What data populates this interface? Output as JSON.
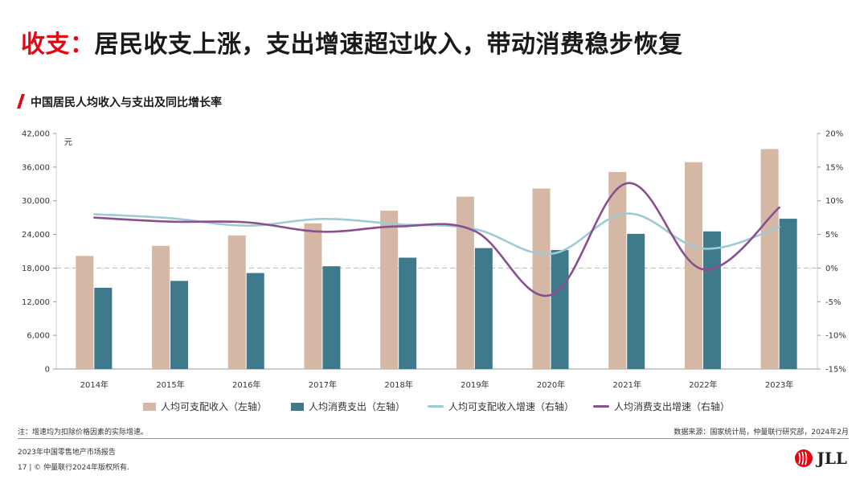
{
  "page": {
    "title_accent": "收支：",
    "title_main": "居民收支上涨，支出增速超过收入，带动消费稳步恢复",
    "subtitle": "中国居民人均收入与支出及同比增长率",
    "footnote_left": "注：增速均为扣除价格因素的实际增速。",
    "footnote_right": "数据来源：国家统计局，仲量联行研究部，2024年2月",
    "report": "2023年中国零售地产市场报告",
    "copyright": "17 | © 仲量联行2024年版权所有.",
    "logo_text": "JLL"
  },
  "colors": {
    "accent": "#e30613",
    "income_bar": "#d4b8a5",
    "expense_bar": "#3f7a8c",
    "income_growth_line": "#9ecad6",
    "expense_growth_line": "#8a4f8e",
    "zero_line": "#bfbfbf"
  },
  "chart_data": {
    "type": "bar",
    "categories": [
      "2014年",
      "2015年",
      "2016年",
      "2017年",
      "2018年",
      "2019年",
      "2020年",
      "2021年",
      "2022年",
      "2023年"
    ],
    "unit_left": "元",
    "ylim_left": [
      0,
      42000
    ],
    "yticks_left": [
      "0",
      "6,000",
      "12,000",
      "18,000",
      "24,000",
      "30,000",
      "36,000",
      "42,000"
    ],
    "ylim_right": [
      -15,
      20
    ],
    "yticks_right": [
      "-15%",
      "-10%",
      "-5%",
      "0%",
      "5%",
      "10%",
      "15%",
      "20%"
    ],
    "grid": false,
    "legend_position": "bottom",
    "series": [
      {
        "name": "人均可支配收入（左轴）",
        "type": "bar",
        "axis": "left",
        "values": [
          20167,
          21966,
          23821,
          25974,
          28228,
          30733,
          32189,
          35128,
          36883,
          39218
        ]
      },
      {
        "name": "人均消费支出（左轴）",
        "type": "bar",
        "axis": "left",
        "values": [
          14491,
          15712,
          17111,
          18322,
          19853,
          21559,
          21210,
          24100,
          24538,
          26796
        ]
      },
      {
        "name": "人均可支配收入增速（右轴）",
        "type": "line",
        "axis": "right",
        "values": [
          8.0,
          7.4,
          6.3,
          7.3,
          6.5,
          5.8,
          2.1,
          8.1,
          2.9,
          6.1
        ]
      },
      {
        "name": "人均消费支出增速（右轴）",
        "type": "line",
        "axis": "right",
        "values": [
          7.5,
          6.9,
          6.8,
          5.4,
          6.2,
          5.5,
          -4.0,
          12.6,
          -0.2,
          9.0
        ]
      }
    ]
  }
}
